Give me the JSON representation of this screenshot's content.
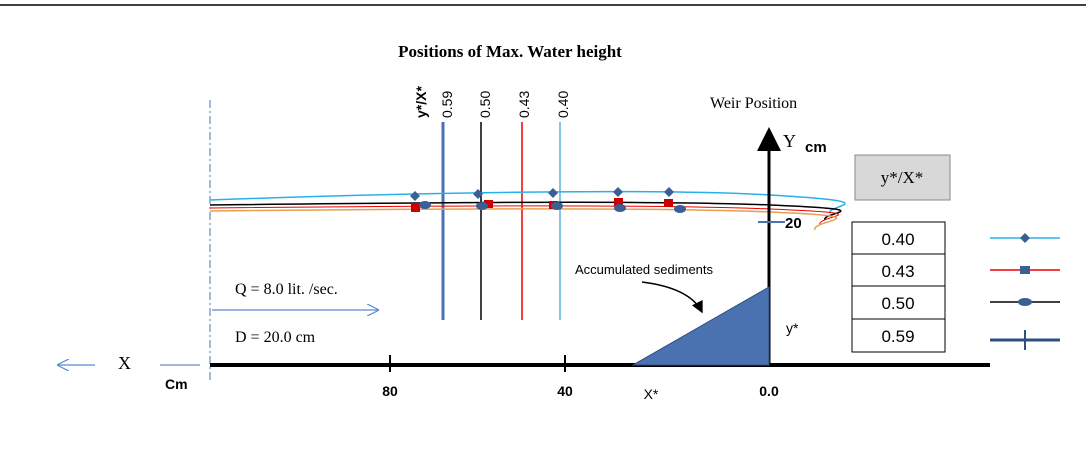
{
  "title": "Positions of Max. Water height",
  "ratio_lines": {
    "heading": "y*/X*",
    "labels": [
      "0.59",
      "0.50",
      "0.43",
      "0.40"
    ]
  },
  "weir_label": "Weir Position",
  "y_axis": {
    "label": "Y",
    "unit": "cm",
    "tick": "20",
    "ystar": "y*"
  },
  "x_axis": {
    "label": "X",
    "unit": "Cm",
    "ticks": [
      "80",
      "40",
      "0.0"
    ],
    "xstar": "X*"
  },
  "flow": {
    "discharge": "Q = 8.0 lit. /sec.",
    "depth": "D = 20.0 cm"
  },
  "sediments": "Accumulated sediments",
  "legend": {
    "heading": "y*/X*",
    "rows": [
      "0.40",
      "0.43",
      "0.50",
      "0.59"
    ]
  }
}
